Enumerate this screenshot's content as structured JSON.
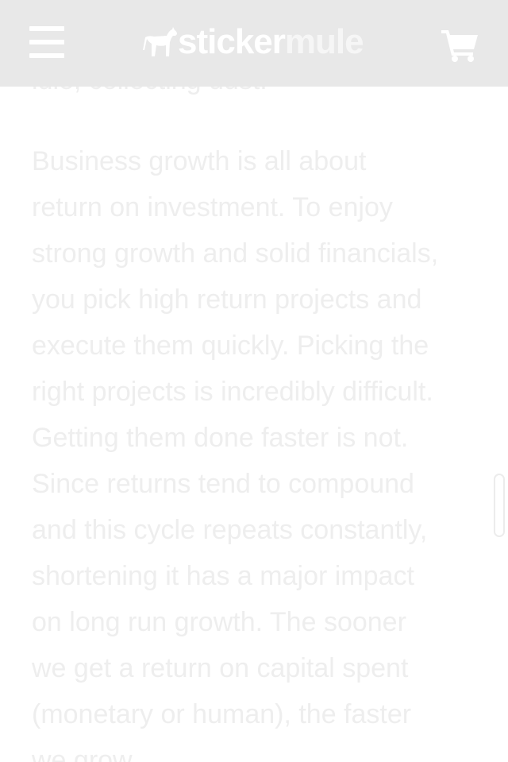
{
  "header": {
    "menu_icon": "hamburger-menu-icon",
    "logo": {
      "mascot_icon": "mule-icon",
      "word_sticker": "sticker",
      "word_mule": "mule"
    },
    "cart_icon": "shopping-cart-icon"
  },
  "article": {
    "clipped_line": "idle, collecting dust.",
    "paragraph_lines": [
      "Business growth is all about",
      "return on investment. To enjoy",
      "strong growth and solid financials,",
      "you pick high return projects and",
      "execute them quickly. Picking the",
      "right projects is incredibly difficult.",
      "Getting them done faster is not.",
      "Since returns tend to compound",
      "and this cycle repeats constantly,",
      "shortening it has a major impact",
      "on long run growth. The sooner",
      "we get a return on capital spent",
      "(monetary or human), the faster",
      "we grow."
    ]
  },
  "colors": {
    "header_bg": "#e8e8e8",
    "icon_white": "#ffffff",
    "text_faded": "#eeeeee",
    "page_bg": "#ffffff"
  }
}
